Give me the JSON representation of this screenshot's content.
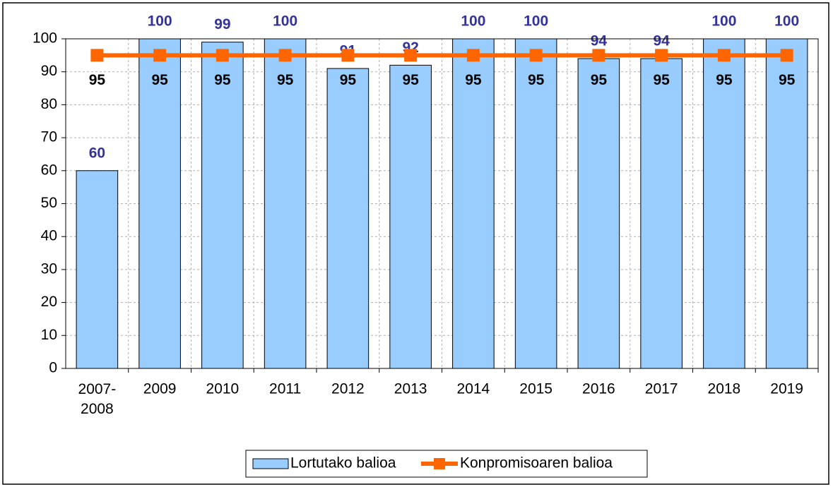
{
  "chart_data": {
    "type": "bar",
    "categories": [
      "2007-2008",
      "2009",
      "2010",
      "2011",
      "2012",
      "2013",
      "2014",
      "2015",
      "2016",
      "2017",
      "2018",
      "2019"
    ],
    "series": [
      {
        "name": "Lortutako balioa",
        "type": "bar",
        "color": "#99ccff",
        "values": [
          60,
          100,
          99,
          100,
          91,
          92,
          100,
          100,
          94,
          94,
          100,
          100
        ]
      },
      {
        "name": "Konpromisoaren balioa",
        "type": "line",
        "color": "#ff6600",
        "values": [
          95,
          95,
          95,
          95,
          95,
          95,
          95,
          95,
          95,
          95,
          95,
          95
        ]
      }
    ],
    "ylim": [
      0,
      100
    ],
    "yticks": [
      0,
      10,
      20,
      30,
      40,
      50,
      60,
      70,
      80,
      90,
      100
    ],
    "grid": true,
    "legend": "bottom"
  }
}
